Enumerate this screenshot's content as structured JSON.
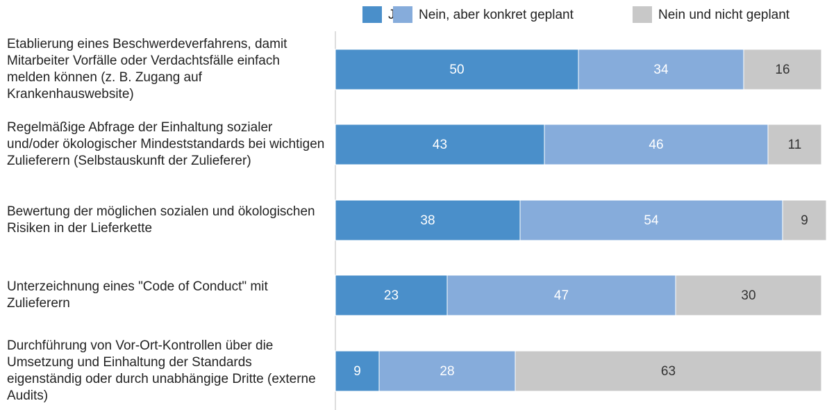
{
  "chart_data": {
    "type": "stacked_bar_horizontal",
    "categories": [
      "Etablierung eines Beschwerdeverfahrens, damit Mitarbeiter Vorfälle oder Verdachtsfälle einfach melden können (z. B. Zugang auf Krankenhauswebsite)",
      "Regelmäßige Abfrage der Einhaltung sozialer und/oder ökologischer Mindeststandards bei wichtigen Zulieferern (Selbstauskunft der Zulieferer)",
      "Bewertung der möglichen sozialen und ökologischen Risiken in der Lieferkette",
      "Unterzeichnung eines \"Code of Conduct\" mit Zulieferern",
      "Durchführung von Vor-Ort-Kontrollen über die Umsetzung und Einhaltung der Standards eigenständig oder durch unabhängige Dritte (externe Audits)"
    ],
    "series": [
      {
        "name": "Ja",
        "color": "#4a8fca",
        "label_color": "#ffffff",
        "values": [
          50,
          43,
          38,
          23,
          9
        ]
      },
      {
        "name": "Nein, aber konkret geplant",
        "color": "#86acdb",
        "label_color": "#ffffff",
        "values": [
          34,
          46,
          54,
          47,
          28
        ]
      },
      {
        "name": "Nein und nicht geplant",
        "color": "#c8c8c8",
        "label_color": "#333333",
        "values": [
          16,
          11,
          9,
          30,
          63
        ]
      }
    ]
  }
}
